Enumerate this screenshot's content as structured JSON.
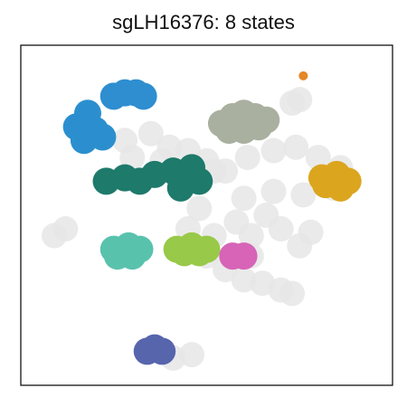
{
  "chart_data": {
    "type": "scatter",
    "title": "sgLH16376: 8 states",
    "xlabel": "",
    "ylabel": "",
    "xlim": [
      0,
      100
    ],
    "ylim": [
      0,
      100
    ],
    "grid": false,
    "legend": "none",
    "background_color": "#e6e6e6",
    "background_points": [
      [
        28,
        72
      ],
      [
        35,
        74
      ],
      [
        40,
        70
      ],
      [
        30,
        67
      ],
      [
        38,
        66
      ],
      [
        45,
        69
      ],
      [
        50,
        66
      ],
      [
        55,
        63
      ],
      [
        61,
        67
      ],
      [
        68,
        69
      ],
      [
        74,
        70
      ],
      [
        80,
        67
      ],
      [
        86,
        64
      ],
      [
        84,
        58
      ],
      [
        76,
        56
      ],
      [
        68,
        57
      ],
      [
        60,
        55
      ],
      [
        66,
        50
      ],
      [
        48,
        52
      ],
      [
        45,
        46
      ],
      [
        52,
        44
      ],
      [
        50,
        38
      ],
      [
        55,
        34
      ],
      [
        60,
        31
      ],
      [
        65,
        30
      ],
      [
        70,
        28
      ],
      [
        73,
        27
      ],
      [
        75,
        41
      ],
      [
        78,
        45
      ],
      [
        70,
        46
      ],
      [
        58,
        48
      ],
      [
        62,
        44
      ],
      [
        9,
        44
      ],
      [
        12,
        46
      ],
      [
        73,
        83
      ],
      [
        75,
        84
      ],
      [
        41,
        8
      ],
      [
        46,
        9
      ],
      [
        52,
        63
      ],
      [
        88,
        60
      ],
      [
        43,
        58
      ],
      [
        62,
        38
      ]
    ],
    "series": [
      {
        "color": "#2b8fcf",
        "points": [
          [
            15,
            76
          ],
          [
            18,
            80
          ],
          [
            20,
            75
          ],
          [
            22,
            73
          ],
          [
            17,
            72
          ]
        ]
      },
      {
        "color": "#2e8ed0",
        "points": [
          [
            25,
            85
          ],
          [
            28,
            86
          ],
          [
            31,
            86
          ],
          [
            33,
            85
          ]
        ]
      },
      {
        "color": "#a9b0a0",
        "points": [
          [
            54,
            77
          ],
          [
            57,
            79
          ],
          [
            60,
            80
          ],
          [
            63,
            79
          ],
          [
            66,
            78
          ],
          [
            60,
            75
          ],
          [
            56,
            75
          ],
          [
            64,
            76
          ]
        ]
      },
      {
        "color": "#1e7a6b",
        "points": [
          [
            23,
            60
          ],
          [
            28,
            61
          ],
          [
            32,
            60
          ],
          [
            36,
            62
          ],
          [
            41,
            63
          ],
          [
            46,
            64
          ],
          [
            43,
            58
          ],
          [
            48,
            60
          ]
        ]
      },
      {
        "color": "#dba51e",
        "points": [
          [
            81,
            61
          ],
          [
            85,
            62
          ],
          [
            88,
            60
          ],
          [
            82,
            59
          ],
          [
            86,
            58
          ]
        ]
      },
      {
        "color": "#59c2ad",
        "points": [
          [
            25,
            40
          ],
          [
            29,
            41
          ],
          [
            32,
            40
          ],
          [
            26,
            38
          ],
          [
            30,
            38
          ]
        ]
      },
      {
        "color": "#98c948",
        "points": [
          [
            42,
            40
          ],
          [
            46,
            41
          ],
          [
            50,
            40
          ],
          [
            44,
            39
          ],
          [
            48,
            39
          ]
        ]
      },
      {
        "color": "#d764b7",
        "points": [
          [
            57,
            38
          ],
          [
            60,
            38
          ]
        ]
      },
      {
        "color": "#5765ad",
        "points": [
          [
            34,
            10
          ],
          [
            36,
            11
          ],
          [
            38,
            10
          ]
        ]
      },
      {
        "color": "#e48726",
        "points": [
          [
            76,
            91
          ]
        ]
      }
    ]
  }
}
